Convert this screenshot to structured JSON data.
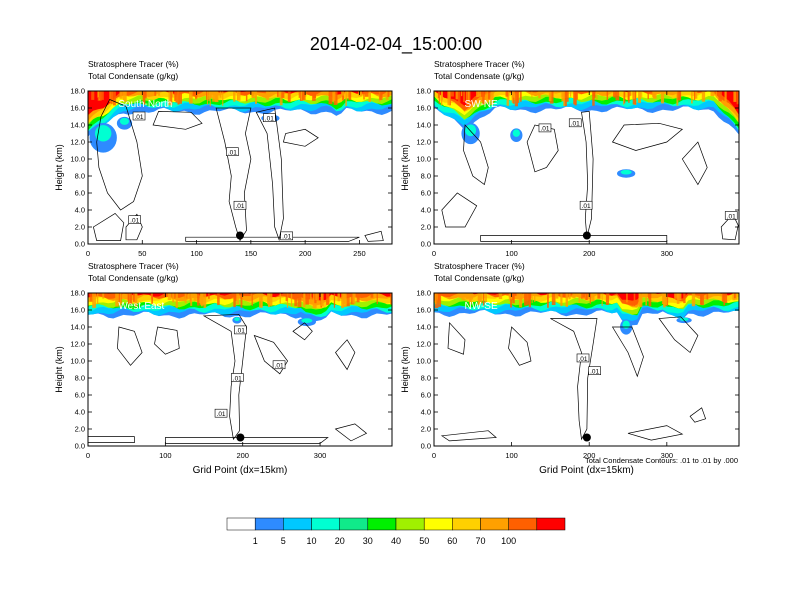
{
  "figure": {
    "title": "2014-02-04_15:00:00",
    "footnote": "Total Condensate Contours: .01 to .01 by .000"
  },
  "colors": {
    "background": "#ffffff",
    "contour_line": "#000000",
    "palette": [
      "#ffffff",
      "#2e8bff",
      "#00c8ff",
      "#00ffd2",
      "#10ea8a",
      "#00f000",
      "#a0f000",
      "#ffff00",
      "#ffd000",
      "#ffa000",
      "#ff6000",
      "#ff0000"
    ]
  },
  "colorbar": {
    "labels": [
      "1",
      "5",
      "10",
      "20",
      "30",
      "40",
      "50",
      "60",
      "70",
      "100"
    ]
  },
  "chart_data": [
    {
      "type": "heatmap",
      "title": "South-North",
      "subtitle_left": "Stratosphere Tracer   (%)",
      "subtitle_left2": "Total Condensate   (g/kg)",
      "xlabel": "",
      "ylabel": "Height (km)",
      "xlim": [
        0,
        280
      ],
      "ylim": [
        0,
        18
      ],
      "xticks": [
        "0",
        "50",
        "100",
        "150",
        "200",
        "250"
      ],
      "yticks": [
        "0.0",
        "2.0",
        "4.0",
        "6.0",
        "8.0",
        "10.0",
        "12.0",
        "14.0",
        "16.0",
        "18.0"
      ],
      "grid": false,
      "contour_labels": [
        {
          "text": ".01",
          "x": 47,
          "y": 15.0
        },
        {
          "text": ".01",
          "x": 133,
          "y": 10.8
        },
        {
          "text": ".01",
          "x": 167,
          "y": 14.8
        },
        {
          "text": ".01",
          "x": 43,
          "y": 2.8
        },
        {
          "text": ".01",
          "x": 140,
          "y": 4.5
        },
        {
          "text": ".01",
          "x": 183,
          "y": 0.9
        }
      ],
      "marker": {
        "x": 140,
        "y": 1.0
      }
    },
    {
      "type": "heatmap",
      "title": "SW-NE",
      "subtitle_left": "Stratosphere Tracer   (%)",
      "subtitle_left2": "Total Condensate   (g/kg)",
      "xlabel": "",
      "ylabel": "Height (km)",
      "xlim": [
        0,
        393
      ],
      "ylim": [
        0,
        18
      ],
      "xticks": [
        "0",
        "100",
        "200",
        "300"
      ],
      "yticks": [
        "0.0",
        "2.0",
        "4.0",
        "6.0",
        "8.0",
        "10.0",
        "12.0",
        "14.0",
        "16.0",
        "18.0"
      ],
      "grid": false,
      "contour_labels": [
        {
          "text": ".01",
          "x": 143,
          "y": 13.6
        },
        {
          "text": ".01",
          "x": 182,
          "y": 14.2
        },
        {
          "text": ".01",
          "x": 196,
          "y": 4.5
        },
        {
          "text": ".01",
          "x": 383,
          "y": 3.3
        }
      ],
      "marker": {
        "x": 197,
        "y": 1.0
      }
    },
    {
      "type": "heatmap",
      "title": "West-East",
      "subtitle_left": "Stratosphere Tracer   (%)",
      "subtitle_left2": "Total Condensate   (g/kg)",
      "xlabel": "Grid Point (dx=15km)",
      "ylabel": "Height (km)",
      "xlim": [
        0,
        393
      ],
      "ylim": [
        0,
        18
      ],
      "xticks": [
        "0",
        "100",
        "200",
        "300"
      ],
      "yticks": [
        "0.0",
        "2.0",
        "4.0",
        "6.0",
        "8.0",
        "10.0",
        "12.0",
        "14.0",
        "16.0",
        "18.0"
      ],
      "grid": false,
      "contour_labels": [
        {
          "text": ".01",
          "x": 197,
          "y": 13.6
        },
        {
          "text": ".01",
          "x": 247,
          "y": 9.5
        },
        {
          "text": ".01",
          "x": 193,
          "y": 8.0
        },
        {
          "text": ".01",
          "x": 172,
          "y": 3.8
        }
      ],
      "marker": {
        "x": 197,
        "y": 1.0
      }
    },
    {
      "type": "heatmap",
      "title": "NW-SE",
      "subtitle_left": "Stratosphere Tracer   (%)",
      "subtitle_left2": "Total Condensate   (g/kg)",
      "xlabel": "Grid Point (dx=15km)",
      "ylabel": "Height (km)",
      "xlim": [
        0,
        393
      ],
      "ylim": [
        0,
        18
      ],
      "xticks": [
        "0",
        "100",
        "200",
        "300"
      ],
      "yticks": [
        "0.0",
        "2.0",
        "4.0",
        "6.0",
        "8.0",
        "10.0",
        "12.0",
        "14.0",
        "16.0",
        "18.0"
      ],
      "grid": false,
      "contour_labels": [
        {
          "text": ".01",
          "x": 192,
          "y": 10.3
        },
        {
          "text": ".01",
          "x": 207,
          "y": 8.8
        }
      ],
      "marker": {
        "x": 197,
        "y": 1.0
      }
    }
  ]
}
